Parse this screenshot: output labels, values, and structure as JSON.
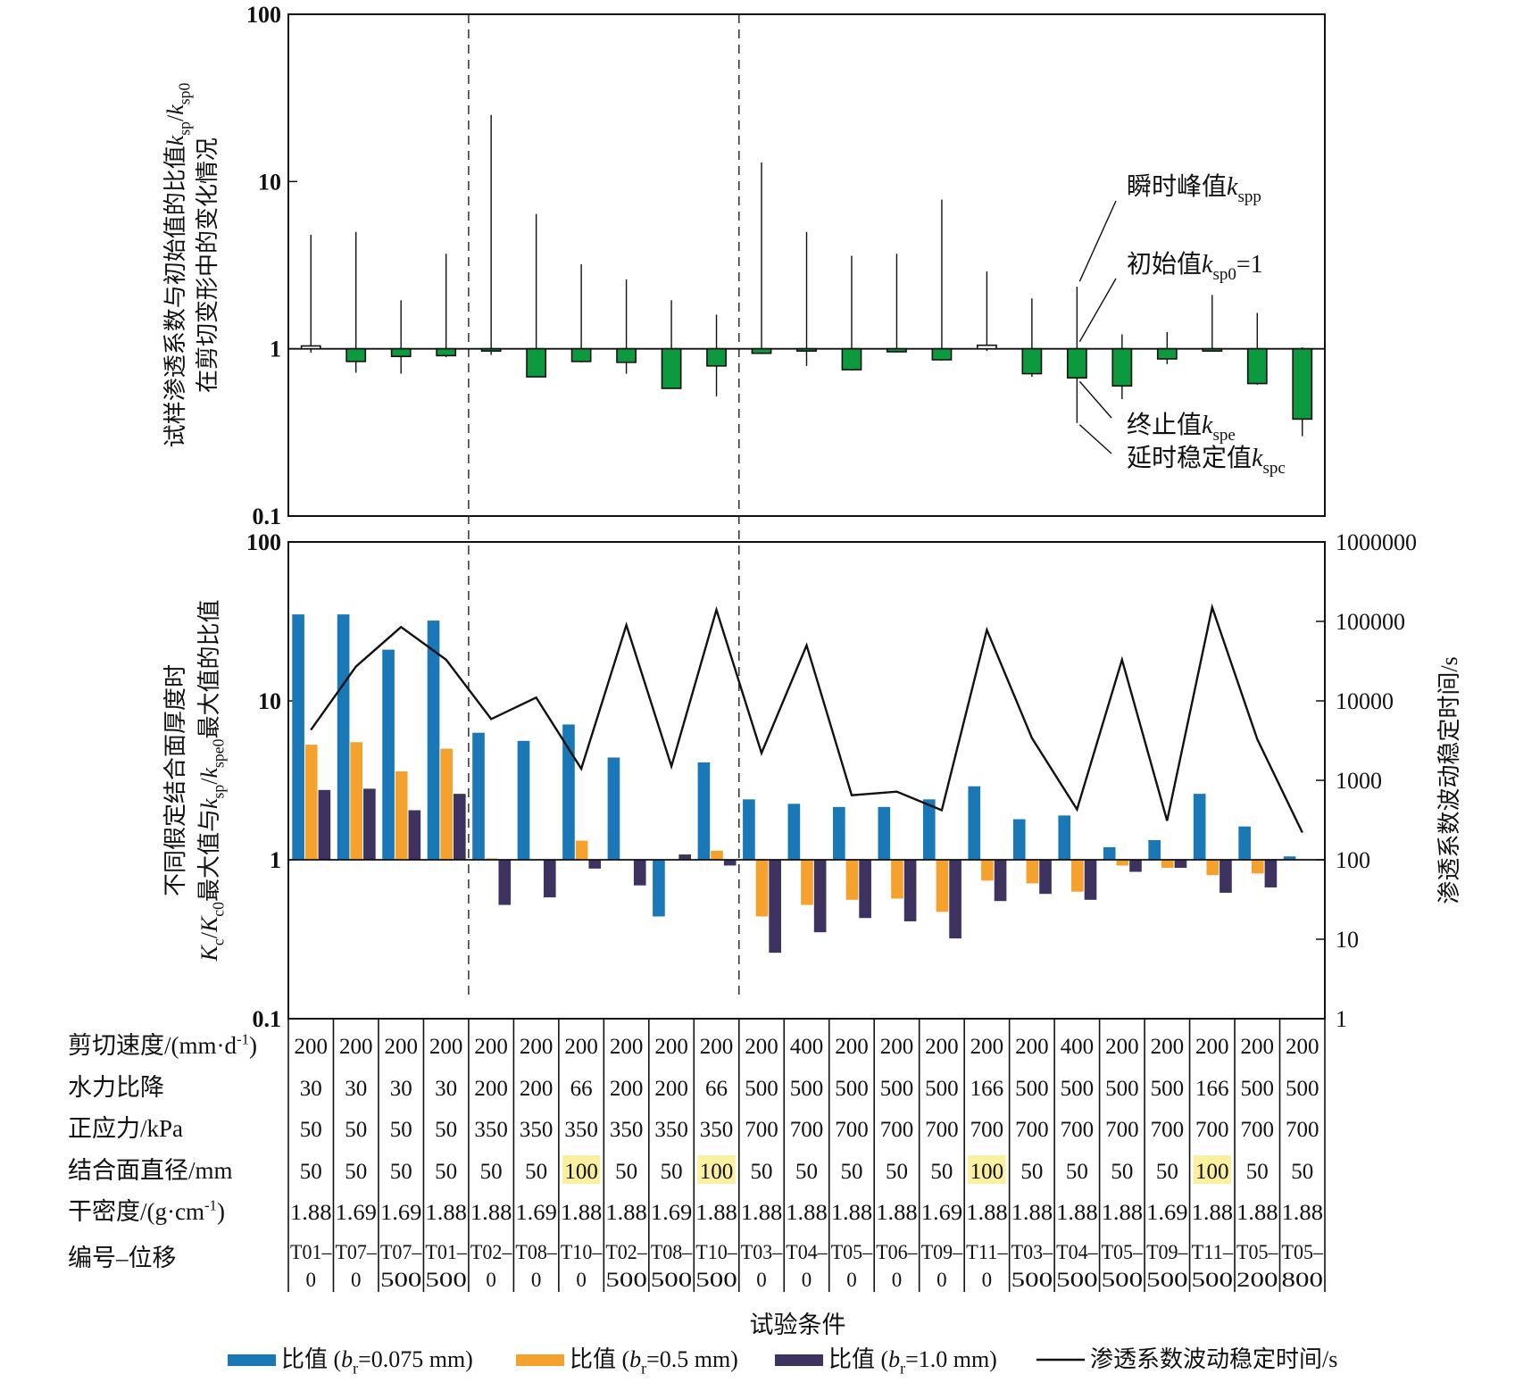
{
  "chart_data": [
    {
      "type": "bar",
      "title": "",
      "ylabel_lines": [
        "试样渗透系数与初始值的比值k_sp/k_sp0",
        "在剪切变形中的变化情况"
      ],
      "ylabel_parts": [
        [
          {
            "t": "试样渗透系数与初始值的比值"
          },
          {
            "t": "k",
            "i": true
          },
          {
            "t": "sp",
            "sub": true
          },
          {
            "t": "/"
          },
          {
            "t": "k",
            "i": true
          },
          {
            "t": "sp0",
            "sub": true
          }
        ],
        [
          {
            "t": "在剪切变形中的变化情况"
          }
        ]
      ],
      "yscale": "log",
      "ylim": [
        0.1,
        100
      ],
      "yticks": [
        "0.1",
        "1",
        "10",
        "100"
      ],
      "ytick_values": [
        0.1,
        1,
        10,
        100
      ],
      "baseline": 1,
      "group_separators_after": [
        4,
        10
      ],
      "categories": [
        "T01-0",
        "T07-0",
        "T07-500",
        "T01-500",
        "T02-0",
        "T08-0",
        "T10-0",
        "T02-500",
        "T08-500",
        "T10-500",
        "T03-0",
        "T04-0",
        "T05-0",
        "T06-0",
        "T09-0",
        "T11-0",
        "T03-500",
        "T04-500",
        "T05-500",
        "T09-500",
        "T11-500",
        "T05-200",
        "T05-800"
      ],
      "series": [
        {
          "name": "终止值k_spe",
          "values": [
            1.04,
            0.84,
            0.9,
            0.91,
            0.97,
            0.68,
            0.84,
            0.83,
            0.58,
            0.79,
            0.94,
            0.97,
            0.75,
            0.96,
            0.86,
            1.05,
            0.71,
            0.67,
            0.6,
            0.87,
            0.97,
            0.62,
            0.38
          ]
        },
        {
          "name": "瞬时峰值k_spp",
          "values": [
            4.8,
            5.0,
            1.95,
            3.7,
            25,
            6.4,
            3.2,
            2.6,
            1.95,
            1.6,
            13,
            5.0,
            3.6,
            3.7,
            7.8,
            2.9,
            2.0,
            2.35,
            1.22,
            1.26,
            2.1,
            1.64,
            1.02
          ]
        },
        {
          "name": "延时稳定值k_spc",
          "values": [
            0.95,
            0.72,
            0.71,
            0.89,
            0.92,
            0.68,
            0.83,
            0.71,
            0.58,
            0.52,
            0.93,
            0.79,
            0.74,
            0.95,
            0.85,
            0.97,
            0.68,
            0.36,
            0.5,
            0.81,
            0.96,
            0.61,
            0.3
          ]
        }
      ],
      "annotations": [
        {
          "parts": [
            {
              "t": "瞬时峰值"
            },
            {
              "t": "k",
              "i": true
            },
            {
              "t": "spp",
              "sub": true
            }
          ],
          "target": "peak",
          "category_index": 17
        },
        {
          "parts": [
            {
              "t": "初始值"
            },
            {
              "t": "k",
              "i": true
            },
            {
              "t": "sp0",
              "sub": true
            },
            {
              "t": "=1"
            }
          ],
          "target": "initial",
          "category_index": 17
        },
        {
          "parts": [
            {
              "t": "终止值"
            },
            {
              "t": "k",
              "i": true
            },
            {
              "t": "spe",
              "sub": true
            }
          ],
          "target": "end",
          "category_index": 17
        },
        {
          "parts": [
            {
              "t": "延时稳定值"
            },
            {
              "t": "k",
              "i": true
            },
            {
              "t": "spc",
              "sub": true
            }
          ],
          "target": "delayed",
          "category_index": 17
        }
      ],
      "colors": {
        "decrease": "#0d9a3e",
        "increase": "#ffffff",
        "edge": "#111111"
      }
    },
    {
      "type": "bar",
      "title": "",
      "ylabel_parts": [
        [
          {
            "t": "不同假定结合面厚度时"
          }
        ],
        [
          {
            "t": "K",
            "i": true
          },
          {
            "t": "c",
            "sub": true
          },
          {
            "t": "/"
          },
          {
            "t": "K",
            "i": true
          },
          {
            "t": "c0",
            "sub": true
          },
          {
            "t": "最大值与"
          },
          {
            "t": "k",
            "i": true
          },
          {
            "t": "sp",
            "sub": true
          },
          {
            "t": "/"
          },
          {
            "t": "k",
            "i": true
          },
          {
            "t": "spe0",
            "sub": true
          },
          {
            "t": "最大值的比值"
          }
        ]
      ],
      "yscale": "log",
      "ylim": [
        0.1,
        100
      ],
      "yticks": [
        "0.1",
        "1",
        "10",
        "100"
      ],
      "ytick_values": [
        0.1,
        1,
        10,
        100
      ],
      "y2label": "渗透系数波动稳定时间/s",
      "y2scale": "log",
      "y2lim": [
        1,
        1000000
      ],
      "y2ticks": [
        "1",
        "10",
        "100",
        "1000",
        "10000",
        "100000",
        "1000000"
      ],
      "y2tick_values": [
        1,
        10,
        100,
        1000,
        10000,
        100000,
        1000000
      ],
      "baseline": 1,
      "group_separators_after": [
        4,
        10
      ],
      "xlabel": "试验条件",
      "categories": [
        "T01-0",
        "T07-0",
        "T07-500",
        "T01-500",
        "T02-0",
        "T08-0",
        "T10-0",
        "T02-500",
        "T08-500",
        "T10-500",
        "T03-0",
        "T04-0",
        "T05-0",
        "T06-0",
        "T09-0",
        "T11-0",
        "T03-500",
        "T04-500",
        "T05-500",
        "T09-500",
        "T11-500",
        "T05-200",
        "T05-800"
      ],
      "series": [
        {
          "name": "比值 (b_r=0.075 mm)",
          "color": "#1a78b7",
          "axis": "left",
          "kind": "bar",
          "values": [
            35,
            35,
            21,
            32,
            6.3,
            5.6,
            7.1,
            4.4,
            0.44,
            4.1,
            2.4,
            2.25,
            2.15,
            2.15,
            2.4,
            2.9,
            1.8,
            1.9,
            1.2,
            1.33,
            2.6,
            1.62,
            1.05
          ]
        },
        {
          "name": "比值 (b_r=0.5 mm)",
          "color": "#f5a12d",
          "axis": "left",
          "kind": "bar",
          "values": [
            5.3,
            5.5,
            3.6,
            5.0,
            1.02,
            1.0,
            1.32,
            1.0,
            1.0,
            1.14,
            0.44,
            0.52,
            0.56,
            0.57,
            0.47,
            0.74,
            0.71,
            0.63,
            0.92,
            0.89,
            0.8,
            0.82,
            1.0
          ]
        },
        {
          "name": "比值 (b_r=1.0 mm)",
          "color": "#3d3260",
          "axis": "left",
          "kind": "bar",
          "values": [
            2.75,
            2.8,
            2.05,
            2.6,
            0.52,
            0.58,
            0.88,
            0.69,
            1.08,
            0.92,
            0.26,
            0.35,
            0.43,
            0.41,
            0.32,
            0.55,
            0.61,
            0.56,
            0.84,
            0.89,
            0.62,
            0.67,
            1.0
          ]
        },
        {
          "name": "渗透系数波动稳定时间/s",
          "color": "#111111",
          "axis": "right",
          "kind": "line",
          "values": [
            4300,
            27000,
            85000,
            33000,
            5900,
            11000,
            1400,
            90000,
            1500,
            140000,
            2200,
            50000,
            650,
            720,
            420,
            78000,
            3400,
            430,
            33000,
            310,
            150000,
            3300,
            220
          ]
        }
      ]
    }
  ],
  "table": {
    "row_labels": [
      [
        {
          "t": "剪切速度/(mm·d"
        },
        {
          "t": "-1",
          "sup": true
        },
        {
          "t": ")"
        }
      ],
      [
        {
          "t": "水力比降"
        }
      ],
      [
        {
          "t": "正应力/kPa"
        }
      ],
      [
        {
          "t": "结合面直径/mm"
        }
      ],
      [
        {
          "t": "干密度/(g·cm"
        },
        {
          "t": "-1",
          "sup": true
        },
        {
          "t": ")"
        }
      ],
      [
        {
          "t": "编号–位移"
        }
      ]
    ],
    "rows": [
      [
        "200",
        "200",
        "200",
        "200",
        "200",
        "200",
        "200",
        "200",
        "200",
        "200",
        "200",
        "400",
        "200",
        "200",
        "200",
        "200",
        "200",
        "400",
        "200",
        "200",
        "200",
        "200",
        "200"
      ],
      [
        "30",
        "30",
        "30",
        "30",
        "200",
        "200",
        "66",
        "200",
        "200",
        "66",
        "500",
        "500",
        "500",
        "500",
        "500",
        "166",
        "500",
        "500",
        "500",
        "500",
        "166",
        "500",
        "500"
      ],
      [
        "50",
        "50",
        "50",
        "50",
        "350",
        "350",
        "350",
        "350",
        "350",
        "350",
        "700",
        "700",
        "700",
        "700",
        "700",
        "700",
        "700",
        "700",
        "700",
        "700",
        "700",
        "700",
        "700"
      ],
      [
        "50",
        "50",
        "50",
        "50",
        "50",
        "50",
        "100",
        "50",
        "50",
        "100",
        "50",
        "50",
        "50",
        "50",
        "50",
        "100",
        "50",
        "50",
        "50",
        "50",
        "100",
        "50",
        "50"
      ],
      [
        "1.88",
        "1.69",
        "1.69",
        "1.88",
        "1.88",
        "1.69",
        "1.88",
        "1.88",
        "1.69",
        "1.88",
        "1.88",
        "1.88",
        "1.88",
        "1.88",
        "1.69",
        "1.88",
        "1.88",
        "1.88",
        "1.88",
        "1.69",
        "1.88",
        "1.88",
        "1.88"
      ]
    ],
    "id_rows": [
      [
        "T01–",
        "T07–",
        "T07–",
        "T01–",
        "T02–",
        "T08–",
        "T10–",
        "T02–",
        "T08–",
        "T10–",
        "T03–",
        "T04–",
        "T05–",
        "T06–",
        "T09–",
        "T11–",
        "T03–",
        "T04–",
        "T05–",
        "T09–",
        "T11–",
        "T05–",
        "T05–"
      ],
      [
        "0",
        "0",
        "500",
        "500",
        "0",
        "0",
        "0",
        "500",
        "500",
        "500",
        "0",
        "0",
        "0",
        "0",
        "0",
        "0",
        "500",
        "500",
        "500",
        "500",
        "500",
        "200",
        "800"
      ]
    ],
    "highlight_row": 3,
    "highlight_value": "100",
    "highlight_color": "#fbf0a0"
  },
  "legend": {
    "position": "bottom",
    "items": [
      {
        "kind": "swatch",
        "color": "#1a78b7",
        "parts": [
          {
            "t": "比值 ("
          },
          {
            "t": "b",
            "i": true
          },
          {
            "t": "r",
            "sub": true
          },
          {
            "t": "=0.075 mm)"
          }
        ]
      },
      {
        "kind": "swatch",
        "color": "#f5a12d",
        "parts": [
          {
            "t": "比值 ("
          },
          {
            "t": "b",
            "i": true
          },
          {
            "t": "r",
            "sub": true
          },
          {
            "t": "=0.5 mm)"
          }
        ]
      },
      {
        "kind": "swatch",
        "color": "#3d3260",
        "parts": [
          {
            "t": "比值 ("
          },
          {
            "t": "b",
            "i": true
          },
          {
            "t": "r",
            "sub": true
          },
          {
            "t": "=1.0 mm)"
          }
        ]
      },
      {
        "kind": "line",
        "color": "#111111",
        "parts": [
          {
            "t": "渗透系数波动稳定时间/s"
          }
        ]
      }
    ]
  }
}
